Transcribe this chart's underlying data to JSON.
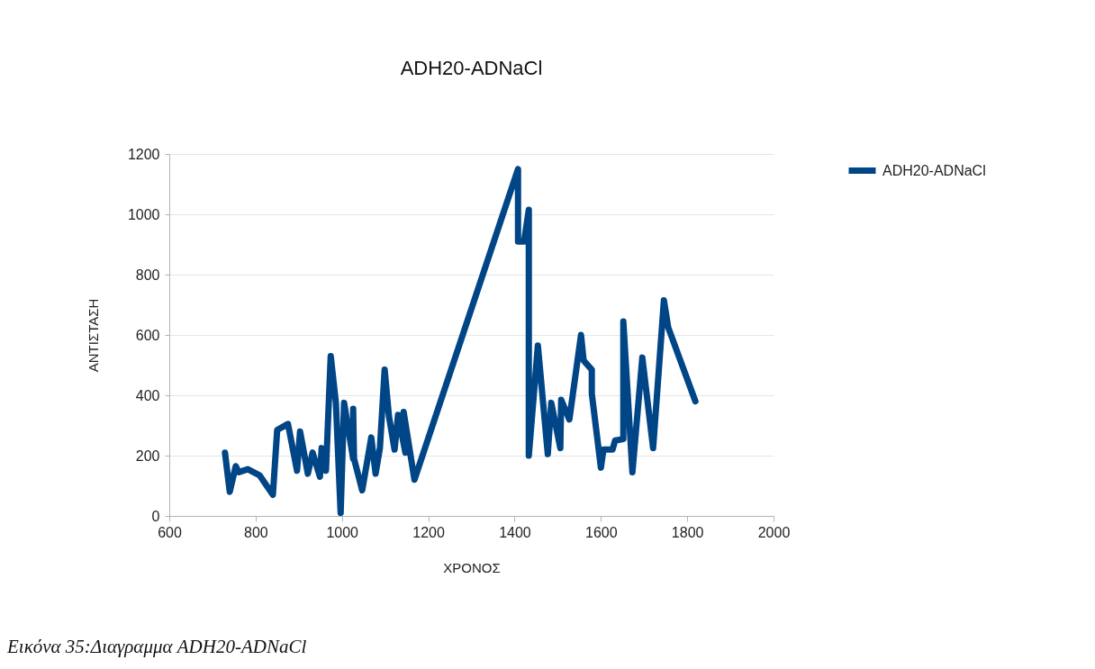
{
  "chart_data": {
    "type": "line",
    "title": "ADH20-ADNaCl",
    "xlabel": "ΧΡΟΝΟΣ",
    "ylabel": "ΑΝΤΙΣΤΑΣΗ",
    "annotations": [
      "Εικόνα 35:Διαγραμμα ADH20-ADNaCl"
    ],
    "series": [
      {
        "name": "ADH20-ADNaCl",
        "color": "#004586",
        "x": [
          729,
          740,
          754,
          761,
          782,
          809,
          840,
          850,
          875,
          896,
          903,
          921,
          932,
          949,
          953,
          963,
          974,
          986,
          997,
          1005,
          1026,
          1026,
          1028,
          1047,
          1068,
          1078,
          1088,
          1099,
          1109,
          1122,
          1130,
          1147,
          1143,
          1168,
          1408,
          1408,
          1422,
          1433,
          1433,
          1454,
          1477,
          1485,
          1506,
          1508,
          1527,
          1554,
          1560,
          1579,
          1579,
          1600,
          1606,
          1627,
          1633,
          1652,
          1652,
          1673,
          1696,
          1721,
          1746,
          1756,
          1819
        ],
        "values": [
          210,
          80,
          165,
          145,
          155,
          135,
          70,
          285,
          305,
          150,
          280,
          140,
          210,
          130,
          225,
          150,
          530,
          375,
          10,
          375,
          190,
          355,
          190,
          85,
          260,
          140,
          225,
          485,
          330,
          220,
          335,
          210,
          345,
          120,
          1150,
          910,
          910,
          1015,
          200,
          565,
          205,
          375,
          225,
          385,
          320,
          600,
          515,
          485,
          405,
          160,
          220,
          220,
          250,
          255,
          645,
          145,
          525,
          225,
          715,
          625,
          380
        ]
      }
    ],
    "xlim": [
      600,
      2000
    ],
    "xticks": [
      600,
      800,
      1000,
      1200,
      1400,
      1600,
      1800,
      2000
    ],
    "ylim": [
      0,
      1200
    ],
    "yticks": [
      0,
      200,
      400,
      600,
      800,
      1000,
      1200
    ],
    "grid": "y",
    "legend": "right",
    "line_style": "solid",
    "marker": "none"
  }
}
